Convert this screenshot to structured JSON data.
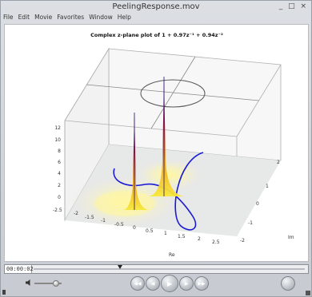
{
  "window": {
    "title": "PeelingResponse.mov",
    "controls_label": "_ □ ×"
  },
  "menu": [
    {
      "label": "File"
    },
    {
      "label": "Edit"
    },
    {
      "label": "Movie"
    },
    {
      "label": "Favorites"
    },
    {
      "label": "Window"
    },
    {
      "label": "Help"
    }
  ],
  "plot": {
    "title": "Complex z-plane plot of 1 + 0.97z⁻¹ + 0.94z⁻²",
    "z_ticks": [
      "0",
      "2",
      "4",
      "6",
      "8",
      "10",
      "12"
    ],
    "re_ticks": [
      "-2.5",
      "-2",
      "-1.5",
      "-1",
      "-0.5",
      "0",
      "0.5",
      "1",
      "1.5",
      "2",
      "2.5"
    ],
    "im_ticks": [
      "-2",
      "-1",
      "0",
      "1",
      "2"
    ],
    "re_label": "Re",
    "im_label": "Im",
    "colors": {
      "peak_top": "#c0102a",
      "peak_mid": "#6a1b9a",
      "peak_base": "#f5e02a",
      "curve": "#1a1ad6",
      "unit_circle": "#555555"
    }
  },
  "player": {
    "time": "00:00:02",
    "playhead_fraction": 0.32,
    "volume_fraction": 0.78,
    "buttons": [
      {
        "name": "rewind-button",
        "icon": "rewind-icon",
        "glyph": "◀◀"
      },
      {
        "name": "step-back-button",
        "icon": "step-back-icon",
        "glyph": "◀"
      },
      {
        "name": "play-button",
        "icon": "play-icon",
        "glyph": "▶"
      },
      {
        "name": "step-forward-button",
        "icon": "step-forward-icon",
        "glyph": "▶"
      },
      {
        "name": "fast-forward-button",
        "icon": "fast-forward-icon",
        "glyph": "▶▶"
      }
    ]
  }
}
